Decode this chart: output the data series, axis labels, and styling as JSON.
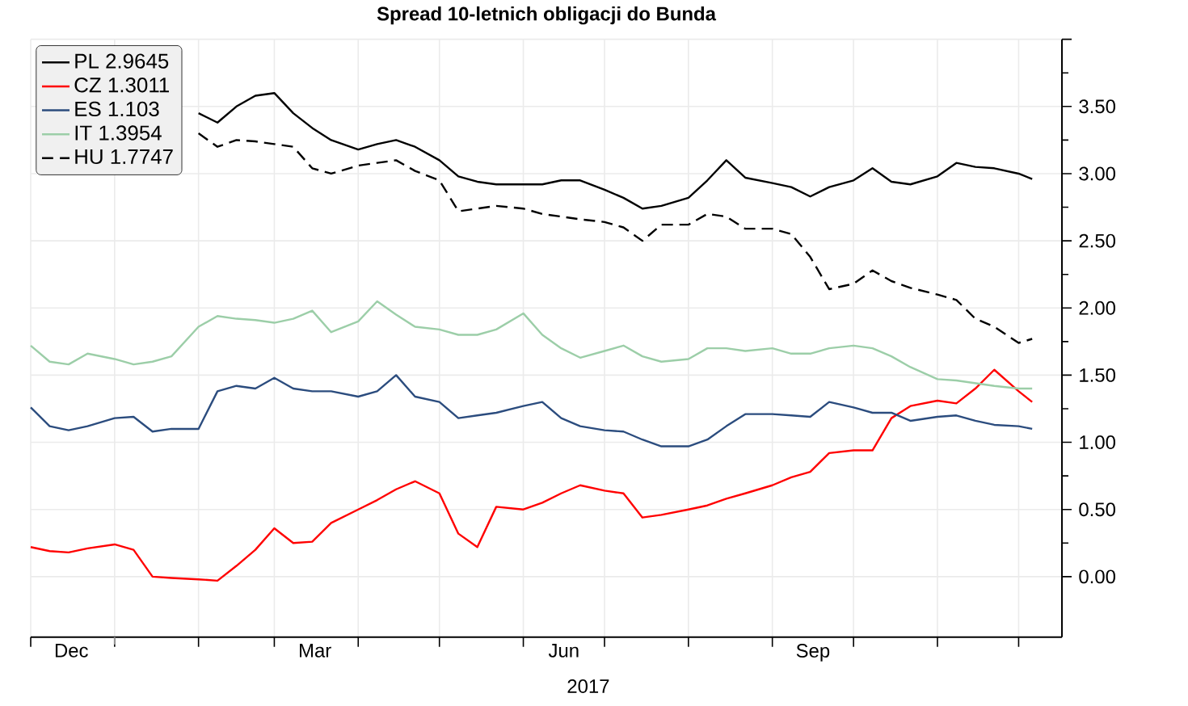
{
  "chart_data": {
    "type": "line",
    "title": "Spread 10-letnich obligacji do Bunda",
    "xlabel": "2017",
    "x": [
      "2016-12-01",
      "2016-12-08",
      "2016-12-15",
      "2016-12-22",
      "2017-01-01",
      "2017-01-08",
      "2017-01-15",
      "2017-01-22",
      "2017-02-01",
      "2017-02-08",
      "2017-02-15",
      "2017-02-22",
      "2017-03-01",
      "2017-03-08",
      "2017-03-15",
      "2017-03-22",
      "2017-04-01",
      "2017-04-08",
      "2017-04-15",
      "2017-04-22",
      "2017-05-01",
      "2017-05-08",
      "2017-05-15",
      "2017-05-22",
      "2017-06-01",
      "2017-06-08",
      "2017-06-15",
      "2017-06-22",
      "2017-07-01",
      "2017-07-08",
      "2017-07-15",
      "2017-07-22",
      "2017-08-01",
      "2017-08-08",
      "2017-08-15",
      "2017-08-22",
      "2017-09-01",
      "2017-09-08",
      "2017-09-15",
      "2017-09-22",
      "2017-10-01",
      "2017-10-08",
      "2017-10-15",
      "2017-10-22",
      "2017-11-01",
      "2017-11-08",
      "2017-11-15",
      "2017-11-22",
      "2017-12-01",
      "2017-12-06"
    ],
    "series": [
      {
        "name": "PL 2.9645",
        "color": "#000000",
        "values": [
          null,
          null,
          null,
          null,
          null,
          null,
          null,
          null,
          3.45,
          3.38,
          3.5,
          3.58,
          3.6,
          3.45,
          3.34,
          3.25,
          3.18,
          3.22,
          3.25,
          3.2,
          3.1,
          2.98,
          2.94,
          2.92,
          2.92,
          2.92,
          2.95,
          2.95,
          2.88,
          2.82,
          2.74,
          2.76,
          2.82,
          2.95,
          3.1,
          2.97,
          2.93,
          2.9,
          2.83,
          2.9,
          2.95,
          3.04,
          2.94,
          2.92,
          2.98,
          3.08,
          3.05,
          3.04,
          3.0,
          2.96
        ]
      },
      {
        "name": "CZ 1.3011",
        "color": "#ff0000",
        "values": [
          0.22,
          0.19,
          0.18,
          0.21,
          0.24,
          0.2,
          0.0,
          -0.01,
          -0.02,
          -0.03,
          0.08,
          0.2,
          0.36,
          0.25,
          0.26,
          0.4,
          0.5,
          0.57,
          0.65,
          0.71,
          0.62,
          0.32,
          0.22,
          0.52,
          0.5,
          0.55,
          0.62,
          0.68,
          0.64,
          0.62,
          0.44,
          0.46,
          0.5,
          0.53,
          0.58,
          0.62,
          0.68,
          0.74,
          0.78,
          0.92,
          0.94,
          0.94,
          1.18,
          1.27,
          1.31,
          1.29,
          1.4,
          1.54,
          1.38,
          1.3
        ]
      },
      {
        "name": "ES 1.103",
        "color": "#2b4c7e",
        "values": [
          1.26,
          1.12,
          1.09,
          1.12,
          1.18,
          1.19,
          1.08,
          1.1,
          1.1,
          1.38,
          1.42,
          1.4,
          1.48,
          1.4,
          1.38,
          1.38,
          1.34,
          1.38,
          1.5,
          1.34,
          1.3,
          1.18,
          1.2,
          1.22,
          1.27,
          1.3,
          1.18,
          1.12,
          1.09,
          1.08,
          1.02,
          0.97,
          0.97,
          1.02,
          1.12,
          1.21,
          1.21,
          1.2,
          1.19,
          1.3,
          1.26,
          1.22,
          1.22,
          1.16,
          1.19,
          1.2,
          1.16,
          1.13,
          1.12,
          1.1
        ]
      },
      {
        "name": "IT 1.3954",
        "color": "#9ccea8",
        "values": [
          1.72,
          1.6,
          1.58,
          1.66,
          1.62,
          1.58,
          1.6,
          1.64,
          1.86,
          1.94,
          1.92,
          1.91,
          1.89,
          1.92,
          1.98,
          1.82,
          1.9,
          2.05,
          1.95,
          1.86,
          1.84,
          1.8,
          1.8,
          1.84,
          1.96,
          1.8,
          1.7,
          1.63,
          1.68,
          1.72,
          1.64,
          1.6,
          1.62,
          1.7,
          1.7,
          1.68,
          1.7,
          1.66,
          1.66,
          1.7,
          1.72,
          1.7,
          1.64,
          1.56,
          1.47,
          1.46,
          1.44,
          1.42,
          1.4,
          1.4
        ]
      },
      {
        "name": "HU 1.7747",
        "color": "#000000",
        "line_style": "dashed",
        "values": [
          null,
          null,
          null,
          null,
          null,
          null,
          null,
          null,
          3.3,
          3.2,
          3.25,
          3.24,
          3.22,
          3.2,
          3.04,
          3.0,
          3.06,
          3.08,
          3.1,
          3.02,
          2.95,
          2.72,
          2.74,
          2.76,
          2.74,
          2.7,
          2.68,
          2.66,
          2.64,
          2.6,
          2.5,
          2.62,
          2.62,
          2.7,
          2.68,
          2.59,
          2.59,
          2.55,
          2.38,
          2.14,
          2.18,
          2.28,
          2.2,
          2.15,
          2.1,
          2.06,
          1.92,
          1.86,
          1.74,
          1.77
        ]
      }
    ],
    "xlim": [
      "2016-12-01",
      "2017-12-17"
    ],
    "xticks": [
      {
        "value": "2016-12-01",
        "label": null
      },
      {
        "value": "2016-12-16",
        "label": "Dec"
      },
      {
        "value": "2017-01-01",
        "label": null
      },
      {
        "value": "2017-02-01",
        "label": null
      },
      {
        "value": "2017-03-01",
        "label": null
      },
      {
        "value": "2017-03-16",
        "label": "Mar"
      },
      {
        "value": "2017-04-01",
        "label": null
      },
      {
        "value": "2017-05-01",
        "label": null
      },
      {
        "value": "2017-06-01",
        "label": null
      },
      {
        "value": "2017-06-16",
        "label": "Jun"
      },
      {
        "value": "2017-07-01",
        "label": null
      },
      {
        "value": "2017-08-01",
        "label": null
      },
      {
        "value": "2017-09-01",
        "label": null
      },
      {
        "value": "2017-09-16",
        "label": "Sep"
      },
      {
        "value": "2017-10-01",
        "label": null
      },
      {
        "value": "2017-11-01",
        "label": null
      },
      {
        "value": "2017-12-01",
        "label": null
      }
    ],
    "ylim": [
      -0.45,
      4.0
    ],
    "yticks": [
      {
        "value": 0,
        "label": "0.00"
      },
      {
        "value": 0.5,
        "label": "0.50"
      },
      {
        "value": 1.0,
        "label": "1.00"
      },
      {
        "value": 1.5,
        "label": "1.50"
      },
      {
        "value": 2.0,
        "label": "2.00"
      },
      {
        "value": 2.5,
        "label": "2.50"
      },
      {
        "value": 3.0,
        "label": "3.00"
      },
      {
        "value": 3.5,
        "label": "3.50"
      },
      {
        "value": 4.0,
        "label": null
      }
    ],
    "grid": true,
    "legend": "top left",
    "line_style": "solid",
    "marker": "none"
  }
}
